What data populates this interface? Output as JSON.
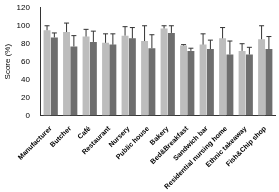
{
  "chart_data": {
    "type": "bar",
    "y_label": "Score (%)",
    "categories": [
      "Manufacturer",
      "Butcher",
      "Café",
      "Restaurant",
      "Nursery",
      "Public house",
      "Bakery",
      "Bed&Breakfast",
      "Sandwich bar",
      "Residential nursing home",
      "Ethnic takeaway",
      "Fish&Chip shop"
    ],
    "series": [
      {
        "color": "#bdbdbd",
        "values": [
          95,
          93,
          88,
          81,
          89,
          83,
          97,
          78,
          79,
          86,
          72,
          85
        ],
        "errors": [
          5,
          10,
          8,
          10,
          10,
          17,
          3,
          1,
          12,
          12,
          8,
          15
        ]
      },
      {
        "color": "#6e6e6e",
        "values": [
          87,
          77,
          82,
          79,
          86,
          75,
          92,
          72,
          74,
          68,
          68,
          74
        ],
        "errors": [
          5,
          12,
          12,
          12,
          12,
          15,
          8,
          3,
          10,
          15,
          8,
          14
        ]
      }
    ],
    "ylim": [
      0,
      120
    ],
    "yticks": [
      0,
      20,
      40,
      60,
      80,
      100,
      120
    ],
    "grid": false
  }
}
